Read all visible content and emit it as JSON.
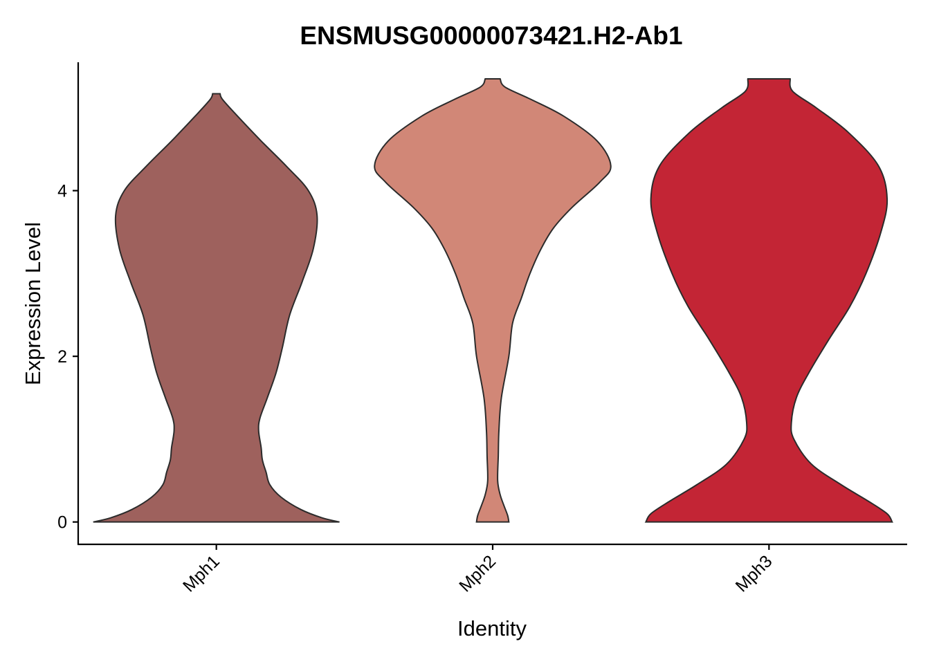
{
  "chart_data": {
    "type": "violin",
    "title": "ENSMUSG00000073421.H2-Ab1",
    "xlabel": "Identity",
    "ylabel": "Expression Level",
    "categories": [
      "Mph1",
      "Mph2",
      "Mph3"
    ],
    "yticks": [
      0,
      2,
      4
    ],
    "yticks_labels": [
      "0",
      "2",
      "4"
    ],
    "ylim": [
      -0.27,
      5.55
    ],
    "grid": false,
    "legend": "none",
    "series": [
      {
        "category": "Mph1",
        "color": "#9E615D",
        "y_range": [
          0,
          5.17
        ],
        "density_profile": [
          [
            0.0,
            0.99
          ],
          [
            0.05,
            0.85
          ],
          [
            0.15,
            0.68
          ],
          [
            0.3,
            0.52
          ],
          [
            0.45,
            0.43
          ],
          [
            0.6,
            0.4
          ],
          [
            0.75,
            0.37
          ],
          [
            0.9,
            0.36
          ],
          [
            1.1,
            0.34
          ],
          [
            1.25,
            0.35
          ],
          [
            1.5,
            0.41
          ],
          [
            1.8,
            0.48
          ],
          [
            2.1,
            0.53
          ],
          [
            2.5,
            0.59
          ],
          [
            2.9,
            0.69
          ],
          [
            3.3,
            0.78
          ],
          [
            3.7,
            0.81
          ],
          [
            4.0,
            0.74
          ],
          [
            4.3,
            0.56
          ],
          [
            4.6,
            0.36
          ],
          [
            4.9,
            0.17
          ],
          [
            5.1,
            0.05
          ],
          [
            5.17,
            0.03
          ]
        ]
      },
      {
        "category": "Mph2",
        "color": "#D18777",
        "y_range": [
          0,
          5.35
        ],
        "density_profile": [
          [
            0.0,
            0.13
          ],
          [
            0.08,
            0.12
          ],
          [
            0.2,
            0.09
          ],
          [
            0.33,
            0.06
          ],
          [
            0.5,
            0.04
          ],
          [
            0.8,
            0.045
          ],
          [
            1.1,
            0.05
          ],
          [
            1.5,
            0.07
          ],
          [
            2.0,
            0.13
          ],
          [
            2.4,
            0.16
          ],
          [
            2.7,
            0.23
          ],
          [
            3.0,
            0.3
          ],
          [
            3.3,
            0.39
          ],
          [
            3.55,
            0.49
          ],
          [
            3.8,
            0.64
          ],
          [
            4.1,
            0.86
          ],
          [
            4.3,
            0.95
          ],
          [
            4.6,
            0.84
          ],
          [
            4.9,
            0.57
          ],
          [
            5.1,
            0.31
          ],
          [
            5.25,
            0.1
          ],
          [
            5.35,
            0.06
          ]
        ]
      },
      {
        "category": "Mph3",
        "color": "#C32535",
        "y_range": [
          0,
          5.35
        ],
        "density_profile": [
          [
            0.0,
            0.99
          ],
          [
            0.1,
            0.95
          ],
          [
            0.25,
            0.8
          ],
          [
            0.45,
            0.58
          ],
          [
            0.7,
            0.34
          ],
          [
            1.0,
            0.2
          ],
          [
            1.2,
            0.18
          ],
          [
            1.5,
            0.22
          ],
          [
            1.8,
            0.32
          ],
          [
            2.2,
            0.48
          ],
          [
            2.6,
            0.65
          ],
          [
            3.0,
            0.78
          ],
          [
            3.5,
            0.9
          ],
          [
            3.9,
            0.95
          ],
          [
            4.3,
            0.88
          ],
          [
            4.7,
            0.64
          ],
          [
            5.0,
            0.38
          ],
          [
            5.2,
            0.19
          ],
          [
            5.35,
            0.17
          ]
        ]
      }
    ]
  }
}
